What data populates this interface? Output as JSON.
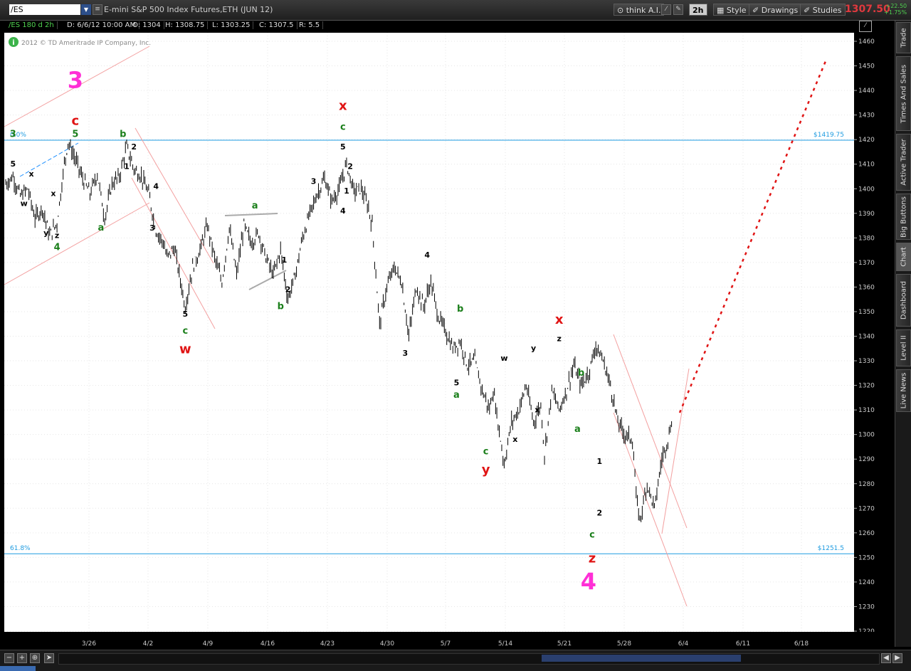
{
  "window": {
    "symbol": "/ES",
    "title": "E-mini S&P 500 Index Futures,ETH (JUN 12)",
    "toolbar": {
      "think_ai": "think A.I.",
      "period": "2h",
      "style": "Style",
      "drawings": "Drawings",
      "studies": "Studies"
    },
    "last_price": "1307.50",
    "change": "+22.50",
    "change_pct": "+1.75%"
  },
  "infobar": {
    "label": "/ES 180 d 2h",
    "date": "D: 6/6/12 10:00 AM",
    "open": "O: 1304",
    "high": "H: 1308.75",
    "low": "L: 1303.25",
    "close": "C: 1307.5",
    "range": "R: 5.5"
  },
  "copyright": "2012 © TD Ameritrade IP Company, Inc.",
  "sidebar_tabs": [
    "Trade",
    "Times And Sales",
    "Active Trader",
    "Big Buttons",
    "Chart",
    "Dashboard",
    "Level II",
    "Live News"
  ],
  "active_tab": "Chart",
  "chart_data": {
    "type": "candlestick",
    "y_axis": {
      "min": 1220,
      "max": 1460,
      "ticks": [
        1220,
        1230,
        1240,
        1250,
        1260,
        1270,
        1280,
        1290,
        1300,
        1310,
        1320,
        1330,
        1340,
        1350,
        1360,
        1370,
        1380,
        1390,
        1400,
        1410,
        1420,
        1430,
        1440,
        1450,
        1460
      ]
    },
    "x_ticks": [
      "3/26",
      "4/2",
      "4/9",
      "4/16",
      "4/23",
      "4/30",
      "5/7",
      "5/14",
      "5/21",
      "5/28",
      "6/4",
      "6/11",
      "6/18"
    ],
    "price_path": [
      [
        0,
        1402
      ],
      [
        2,
        1405
      ],
      [
        4,
        1397
      ],
      [
        6,
        1400
      ],
      [
        8,
        1388
      ],
      [
        10,
        1392
      ],
      [
        12,
        1381
      ],
      [
        14,
        1386
      ],
      [
        16,
        1410
      ],
      [
        17,
        1419
      ],
      [
        19,
        1412
      ],
      [
        21,
        1404
      ],
      [
        23,
        1398
      ],
      [
        25,
        1406
      ],
      [
        27,
        1388
      ],
      [
        29,
        1402
      ],
      [
        31,
        1405
      ],
      [
        33,
        1417
      ],
      [
        35,
        1408
      ],
      [
        37,
        1405
      ],
      [
        39,
        1398
      ],
      [
        41,
        1383
      ],
      [
        43,
        1378
      ],
      [
        44,
        1372
      ],
      [
        46,
        1376
      ],
      [
        48,
        1360
      ],
      [
        49,
        1352
      ],
      [
        51,
        1368
      ],
      [
        53,
        1375
      ],
      [
        55,
        1385
      ],
      [
        57,
        1372
      ],
      [
        59,
        1362
      ],
      [
        61,
        1384
      ],
      [
        63,
        1365
      ],
      [
        65,
        1385
      ],
      [
        67,
        1378
      ],
      [
        69,
        1382
      ],
      [
        71,
        1372
      ],
      [
        73,
        1365
      ],
      [
        75,
        1375
      ],
      [
        77,
        1355
      ],
      [
        79,
        1365
      ],
      [
        81,
        1380
      ],
      [
        83,
        1390
      ],
      [
        85,
        1398
      ],
      [
        87,
        1404
      ],
      [
        89,
        1395
      ],
      [
        91,
        1400
      ],
      [
        93,
        1410
      ],
      [
        95,
        1399
      ],
      [
        97,
        1400
      ],
      [
        99,
        1392
      ],
      [
        100,
        1385
      ],
      [
        102,
        1345
      ],
      [
        104,
        1360
      ],
      [
        106,
        1368
      ],
      [
        108,
        1362
      ],
      [
        110,
        1340
      ],
      [
        112,
        1360
      ],
      [
        114,
        1352
      ],
      [
        116,
        1362
      ],
      [
        118,
        1348
      ],
      [
        120,
        1342
      ],
      [
        122,
        1335
      ],
      [
        124,
        1338
      ],
      [
        126,
        1328
      ],
      [
        128,
        1330
      ],
      [
        130,
        1318
      ],
      [
        132,
        1310
      ],
      [
        133,
        1318
      ],
      [
        135,
        1298
      ],
      [
        136,
        1288
      ],
      [
        138,
        1305
      ],
      [
        140,
        1310
      ],
      [
        142,
        1320
      ],
      [
        144,
        1305
      ],
      [
        146,
        1312
      ],
      [
        147,
        1292
      ],
      [
        149,
        1318
      ],
      [
        151,
        1310
      ],
      [
        153,
        1318
      ],
      [
        155,
        1328
      ],
      [
        157,
        1320
      ],
      [
        159,
        1325
      ],
      [
        161,
        1336
      ],
      [
        163,
        1330
      ],
      [
        165,
        1320
      ],
      [
        167,
        1305
      ],
      [
        169,
        1300
      ],
      [
        171,
        1298
      ],
      [
        172,
        1275
      ],
      [
        173,
        1265
      ],
      [
        175,
        1280
      ],
      [
        177,
        1270
      ],
      [
        179,
        1290
      ],
      [
        181,
        1300
      ],
      [
        182,
        1308
      ]
    ],
    "levels": [
      {
        "label_left": "0.0%",
        "label_right": "$1419.75",
        "value": 1419.75
      },
      {
        "label_left": "61.8%",
        "label_right": "$1251.5",
        "value": 1251.5
      }
    ],
    "annotations": [
      {
        "text": "3",
        "color": "#ff2fd6",
        "size": "xl",
        "at": [
          19,
          1441
        ]
      },
      {
        "text": "c",
        "color": "#e01414",
        "size": "l",
        "at": [
          19,
          1426
        ]
      },
      {
        "text": "5",
        "color": "#1b7f1b",
        "size": "m",
        "at": [
          19,
          1421
        ]
      },
      {
        "text": "3",
        "color": "#1b7f1b",
        "size": "m",
        "at": [
          2,
          1421
        ]
      },
      {
        "text": "5",
        "color": "#000",
        "size": "s",
        "at": [
          2,
          1409
        ]
      },
      {
        "text": "x",
        "color": "#000",
        "size": "s",
        "at": [
          7,
          1405
        ]
      },
      {
        "text": "w",
        "color": "#000",
        "size": "s",
        "at": [
          5,
          1393
        ]
      },
      {
        "text": "x",
        "color": "#000",
        "size": "s",
        "at": [
          13,
          1397
        ]
      },
      {
        "text": "y",
        "color": "#000",
        "size": "s",
        "at": [
          11,
          1381
        ]
      },
      {
        "text": "z",
        "color": "#000",
        "size": "s",
        "at": [
          14,
          1380
        ]
      },
      {
        "text": "4",
        "color": "#1b7f1b",
        "size": "m",
        "at": [
          14,
          1375
        ]
      },
      {
        "text": "b",
        "color": "#1b7f1b",
        "size": "m",
        "at": [
          32,
          1421
        ]
      },
      {
        "text": "2",
        "color": "#000",
        "size": "s",
        "at": [
          35,
          1416
        ]
      },
      {
        "text": "1",
        "color": "#000",
        "size": "s",
        "at": [
          33,
          1408
        ]
      },
      {
        "text": "4",
        "color": "#000",
        "size": "s",
        "at": [
          41,
          1400
        ]
      },
      {
        "text": "3",
        "color": "#000",
        "size": "s",
        "at": [
          40,
          1383
        ]
      },
      {
        "text": "a",
        "color": "#1b7f1b",
        "size": "m",
        "at": [
          26,
          1383
        ]
      },
      {
        "text": "5",
        "color": "#000",
        "size": "s",
        "at": [
          49,
          1348
        ]
      },
      {
        "text": "c",
        "color": "#1b7f1b",
        "size": "m",
        "at": [
          49,
          1341
        ]
      },
      {
        "text": "w",
        "color": "#e01414",
        "size": "l",
        "at": [
          49,
          1333
        ]
      },
      {
        "text": "a",
        "color": "#1b7f1b",
        "size": "m",
        "at": [
          68,
          1392
        ]
      },
      {
        "text": "1",
        "color": "#000",
        "size": "s",
        "at": [
          76,
          1370
        ]
      },
      {
        "text": "2",
        "color": "#000",
        "size": "s",
        "at": [
          77,
          1358
        ]
      },
      {
        "text": "b",
        "color": "#1b7f1b",
        "size": "m",
        "at": [
          75,
          1351
        ]
      },
      {
        "text": "3",
        "color": "#000",
        "size": "s",
        "at": [
          84,
          1402
        ]
      },
      {
        "text": "x",
        "color": "#e01414",
        "size": "l",
        "at": [
          92,
          1432
        ]
      },
      {
        "text": "c",
        "color": "#1b7f1b",
        "size": "m",
        "at": [
          92,
          1424
        ]
      },
      {
        "text": "5",
        "color": "#000",
        "size": "s",
        "at": [
          92,
          1416
        ]
      },
      {
        "text": "2",
        "color": "#000",
        "size": "s",
        "at": [
          94,
          1408
        ]
      },
      {
        "text": "1",
        "color": "#000",
        "size": "s",
        "at": [
          93,
          1398
        ]
      },
      {
        "text": "4",
        "color": "#000",
        "size": "s",
        "at": [
          92,
          1390
        ]
      },
      {
        "text": "4",
        "color": "#000",
        "size": "s",
        "at": [
          115,
          1372
        ]
      },
      {
        "text": "3",
        "color": "#000",
        "size": "s",
        "at": [
          109,
          1332
        ]
      },
      {
        "text": "b",
        "color": "#1b7f1b",
        "size": "m",
        "at": [
          124,
          1350
        ]
      },
      {
        "text": "5",
        "color": "#000",
        "size": "s",
        "at": [
          123,
          1320
        ]
      },
      {
        "text": "a",
        "color": "#1b7f1b",
        "size": "m",
        "at": [
          123,
          1315
        ]
      },
      {
        "text": "c",
        "color": "#1b7f1b",
        "size": "m",
        "at": [
          131,
          1292
        ]
      },
      {
        "text": "y",
        "color": "#e01414",
        "size": "l",
        "at": [
          131,
          1284
        ]
      },
      {
        "text": "w",
        "color": "#000",
        "size": "s",
        "at": [
          136,
          1330
        ]
      },
      {
        "text": "x",
        "color": "#000",
        "size": "s",
        "at": [
          139,
          1297
        ]
      },
      {
        "text": "y",
        "color": "#000",
        "size": "s",
        "at": [
          144,
          1334
        ]
      },
      {
        "text": "x",
        "color": "#000",
        "size": "s",
        "at": [
          145,
          1309
        ]
      },
      {
        "text": "x",
        "color": "#e01414",
        "size": "l",
        "at": [
          151,
          1345
        ]
      },
      {
        "text": "z",
        "color": "#000",
        "size": "s",
        "at": [
          151,
          1338
        ]
      },
      {
        "text": "b",
        "color": "#1b7f1b",
        "size": "m",
        "at": [
          157,
          1324
        ]
      },
      {
        "text": "a",
        "color": "#1b7f1b",
        "size": "m",
        "at": [
          156,
          1301
        ]
      },
      {
        "text": "1",
        "color": "#000",
        "size": "s",
        "at": [
          162,
          1288
        ]
      },
      {
        "text": "2",
        "color": "#000",
        "size": "s",
        "at": [
          162,
          1267
        ]
      },
      {
        "text": "c",
        "color": "#1b7f1b",
        "size": "m",
        "at": [
          160,
          1258
        ]
      },
      {
        "text": "z",
        "color": "#e01414",
        "size": "l",
        "at": [
          160,
          1248
        ]
      },
      {
        "text": "4",
        "color": "#ff2fd6",
        "size": "xl",
        "at": [
          159,
          1237
        ]
      }
    ]
  }
}
